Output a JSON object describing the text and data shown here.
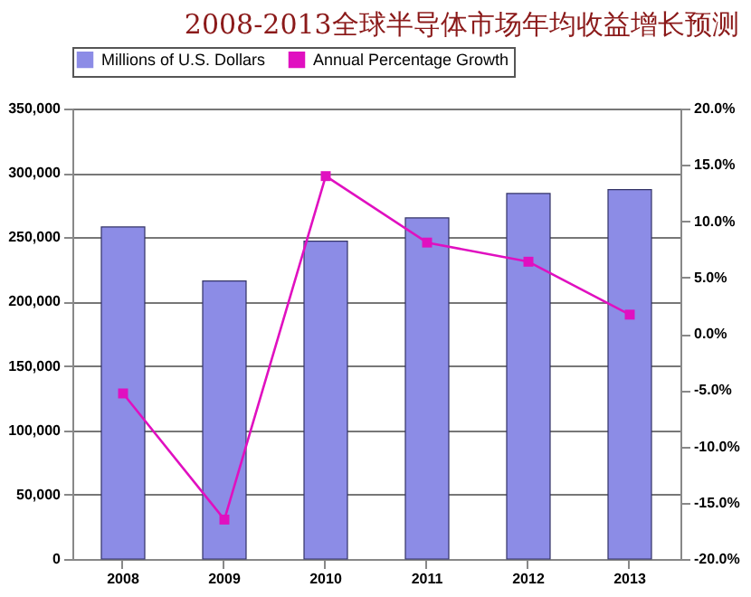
{
  "chart_data": {
    "type": "bar",
    "title": "2008-2013全球半导体市场年均收益增长预测",
    "categories": [
      "2008",
      "2009",
      "2010",
      "2011",
      "2012",
      "2013"
    ],
    "series": [
      {
        "name": "Millions of U.S. Dollars",
        "color": "#8c8ce6",
        "values": [
          258000,
          216000,
          247000,
          265000,
          284000,
          287000
        ]
      },
      {
        "name": "Annual Percentage Growth",
        "type": "line",
        "axis": "y2",
        "color": "#e010c0",
        "values": [
          -5.3,
          -16.5,
          14.0,
          8.1,
          6.4,
          1.7
        ]
      }
    ],
    "ylim": [
      0,
      350000
    ],
    "yticks": [
      {
        "value": 0,
        "label": "0"
      },
      {
        "value": 50000,
        "label": "50,000"
      },
      {
        "value": 100000,
        "label": "100,000"
      },
      {
        "value": 150000,
        "label": "150,000"
      },
      {
        "value": 200000,
        "label": "200,000"
      },
      {
        "value": 250000,
        "label": "250,000"
      },
      {
        "value": 300000,
        "label": "300,000"
      },
      {
        "value": 350000,
        "label": "350,000"
      }
    ],
    "y2lim": [
      -20,
      20
    ],
    "y2ticks": [
      {
        "value": -20,
        "label": "-20.0%"
      },
      {
        "value": -15,
        "label": "-15.0%"
      },
      {
        "value": -10,
        "label": "-10.0%"
      },
      {
        "value": -5,
        "label": "-5.0%"
      },
      {
        "value": 0,
        "label": "0.0%"
      },
      {
        "value": 5,
        "label": "5.0%"
      },
      {
        "value": 10,
        "label": "10.0%"
      },
      {
        "value": 15,
        "label": "15.0%"
      },
      {
        "value": 20,
        "label": "20.0%"
      }
    ],
    "grid": "y",
    "legend": "top",
    "marker": "square"
  }
}
